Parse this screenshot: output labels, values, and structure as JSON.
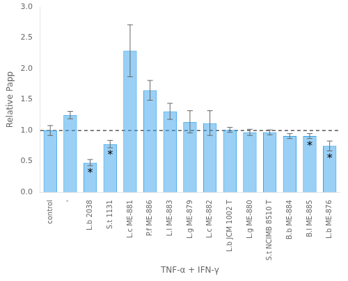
{
  "chart_data": {
    "type": "bar",
    "categories": [
      "control",
      "ʼ",
      "L.b 2038",
      "S.t 1131",
      "L.c ME-881",
      "P.f ME-886",
      "L.l ME-883",
      "L.g ME-879",
      "L.c ME-882",
      "L.b JCM 1002 T",
      "L.g ME-880",
      "S.t NCIMB 8510 T",
      "B.b ME-884",
      "B.l ME-885",
      "L.b ME-876"
    ],
    "values": [
      1.0,
      1.25,
      0.48,
      0.78,
      2.29,
      1.65,
      1.31,
      1.14,
      1.12,
      1.01,
      0.97,
      0.97,
      0.91,
      0.91,
      0.75
    ],
    "errors": [
      0.08,
      0.06,
      0.05,
      0.06,
      0.42,
      0.16,
      0.13,
      0.18,
      0.2,
      0.04,
      0.05,
      0.04,
      0.04,
      0.04,
      0.08
    ],
    "xlabel": "TNF-α + IFN-γ",
    "ylabel": "Relative Papp",
    "ylim": [
      0.0,
      3.0
    ],
    "yticks": [
      {
        "value": 0.0,
        "label": "0.0"
      },
      0.5,
      {
        "value": 1.0,
        "label": "1.0"
      },
      1.5,
      {
        "value": 2.0,
        "label": "2.0"
      },
      2.5,
      {
        "value": 3.0,
        "label": "3.0"
      }
    ],
    "reference_line": {
      "y": 1.0,
      "line_style": "dashed"
    },
    "annotations": [
      {
        "category": "L.b 2038",
        "text": "*"
      },
      {
        "category": "S.t 1131",
        "text": "*"
      },
      {
        "category": "B.l ME-885",
        "text": "*"
      },
      {
        "category": "L.b ME-876",
        "text": "*"
      }
    ],
    "grid": false
  }
}
